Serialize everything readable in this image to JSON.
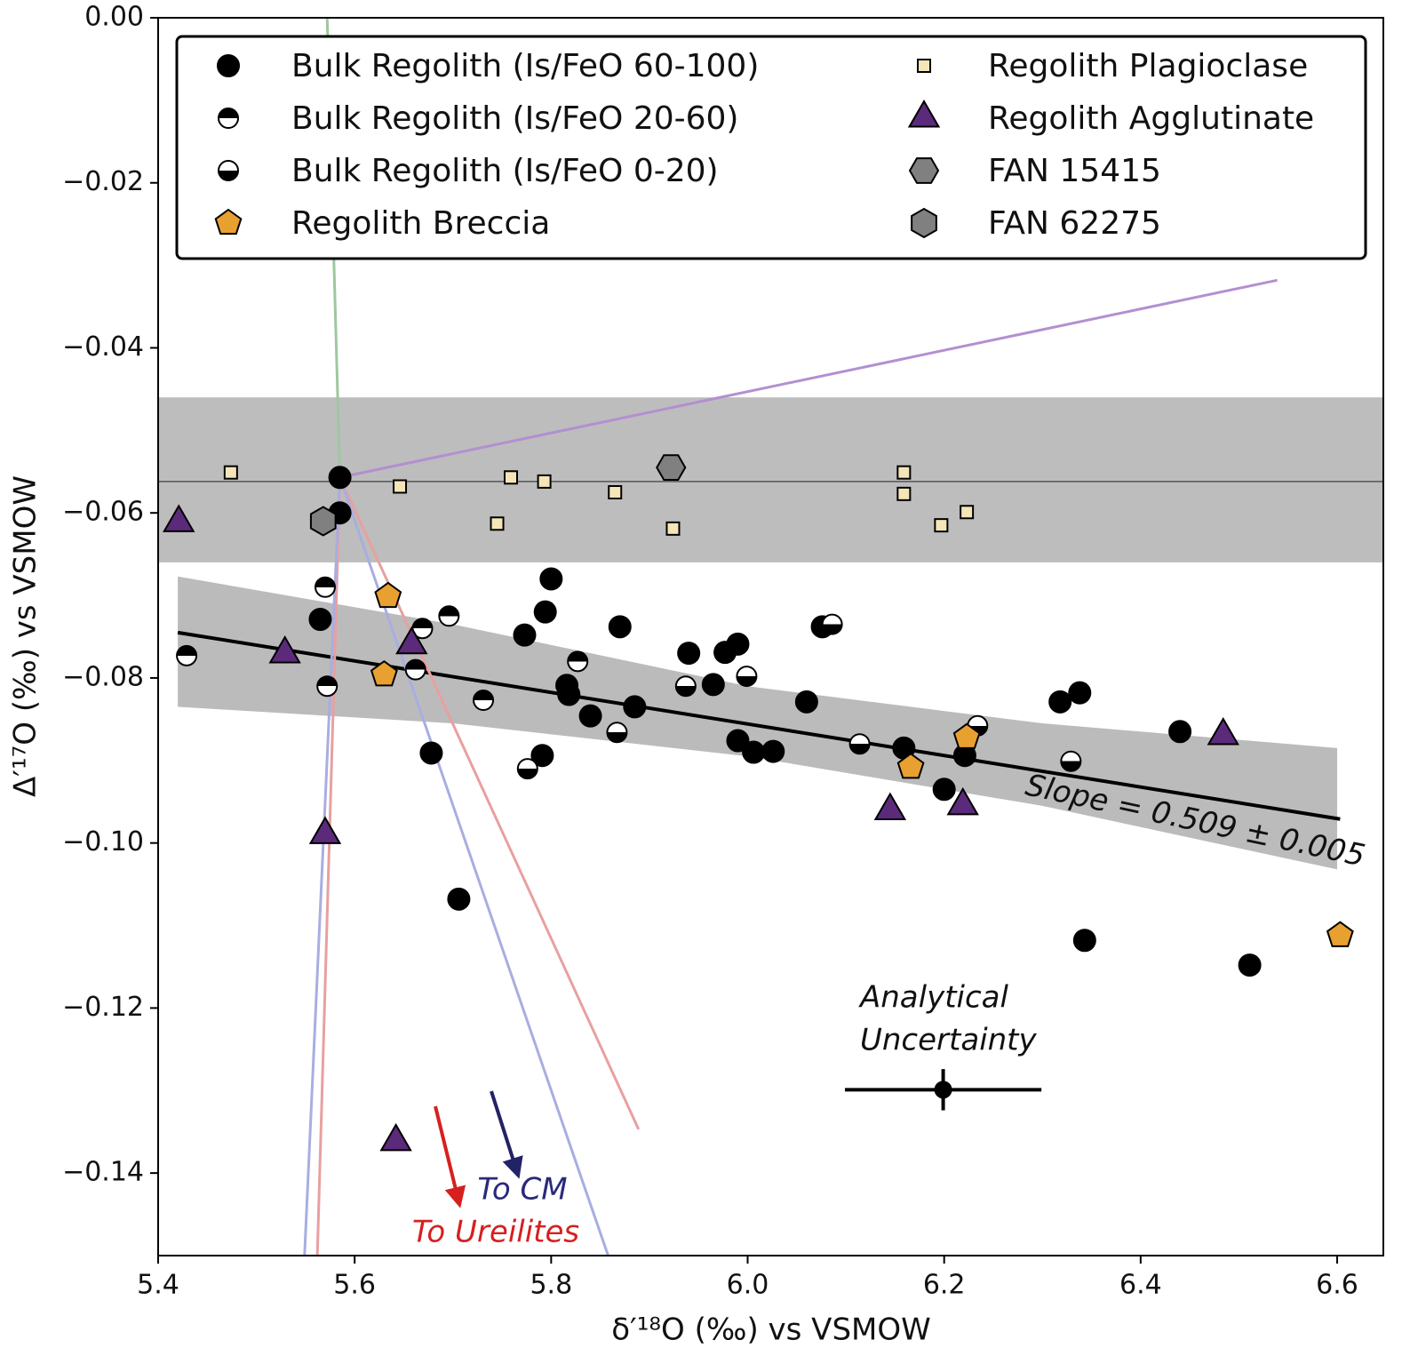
{
  "chart_data": {
    "type": "scatter",
    "xlabel": "δ′¹⁸O (‰) vs VSMOW",
    "ylabel": "Δ′¹⁷O (‰) vs VSMOW",
    "xlim": [
      5.4,
      6.647
    ],
    "ylim": [
      -0.15,
      0
    ],
    "xticks": [
      5.4,
      5.6,
      5.8,
      {
        "value": 6,
        "label": "6.0"
      },
      6.2,
      6.4,
      6.6
    ],
    "yticks": [
      {
        "value": 0,
        "label": "0.00"
      },
      {
        "value": -0.02,
        "label": "−0.02"
      },
      {
        "value": -0.04,
        "label": "−0.04"
      },
      {
        "value": -0.06,
        "label": "−0.06"
      },
      {
        "value": -0.08,
        "label": "−0.08"
      },
      {
        "value": -0.1,
        "label": "−0.10"
      },
      {
        "value": -0.12,
        "label": "−0.12"
      },
      {
        "value": -0.14,
        "label": "−0.14"
      }
    ],
    "hband": {
      "ymin": -0.066,
      "ymax": -0.046,
      "color": "#bdbdbd"
    },
    "hline": {
      "y": -0.0562,
      "color": "#555555"
    },
    "confidence_band": {
      "color": "#9e9e9e",
      "x": [
        5.42,
        5.7,
        6.0,
        6.3,
        6.6
      ],
      "upper": [
        -0.0677,
        -0.0735,
        -0.081,
        -0.0855,
        -0.0885
      ],
      "lower": [
        -0.0835,
        -0.0855,
        -0.0895,
        -0.0955,
        -0.1032
      ]
    },
    "lines": [
      {
        "color": "#000000",
        "x": [
          5.42,
          6.603
        ],
        "y": [
          -0.0745,
          -0.0971
        ]
      },
      {
        "color": "#b48fd0",
        "x": [
          5.585,
          6.539
        ],
        "y": [
          -0.0557,
          -0.0318
        ]
      },
      {
        "color": "#9fc79f",
        "x": [
          5.572,
          5.585
        ],
        "y": [
          0,
          -0.0557
        ]
      },
      {
        "color": "#e8a0a0",
        "x": [
          5.585,
          5.889
        ],
        "y": [
          -0.0557,
          -0.1347
        ]
      },
      {
        "color": "#e8a0a0",
        "x": [
          5.585,
          5.562
        ],
        "y": [
          -0.0557,
          -0.15
        ]
      },
      {
        "color": "#a8aee0",
        "x": [
          5.585,
          5.858
        ],
        "y": [
          -0.0557,
          -0.15
        ]
      },
      {
        "color": "#a8aee0",
        "x": [
          5.585,
          5.549
        ],
        "y": [
          -0.0557,
          -0.15
        ]
      }
    ],
    "series": [
      {
        "name": "Bulk Regolith (Is/FeO 60-100)",
        "color": "#000000",
        "marker": "circle",
        "x": [
          5.585,
          5.585,
          5.565,
          5.8,
          5.794,
          5.773,
          5.87,
          5.94,
          5.977,
          5.99,
          5.965,
          5.816,
          5.818,
          5.84,
          5.885,
          6.06,
          6.076,
          5.99,
          6.006,
          6.026,
          6.159,
          6.221,
          6.2,
          5.678,
          5.791,
          5.706,
          6.318,
          6.338,
          6.44,
          6.343,
          6.511
        ],
        "y": [
          -0.0557,
          -0.06,
          -0.0729,
          -0.068,
          -0.072,
          -0.0748,
          -0.0738,
          -0.077,
          -0.0769,
          -0.0759,
          -0.0808,
          -0.0809,
          -0.082,
          -0.0846,
          -0.0835,
          -0.0829,
          -0.0738,
          -0.0876,
          -0.089,
          -0.0889,
          -0.0885,
          -0.0894,
          -0.0935,
          -0.0891,
          -0.0894,
          -0.1068,
          -0.0829,
          -0.0818,
          -0.0865,
          -0.1118,
          -0.1148
        ]
      },
      {
        "name": "Bulk Regolith (Is/FeO 20-60)",
        "color": "#000000",
        "marker": "half-top",
        "x": [
          5.57,
          5.572,
          5.669,
          5.696,
          5.662,
          5.429,
          5.731,
          5.827
        ],
        "y": [
          -0.069,
          -0.081,
          -0.074,
          -0.0725,
          -0.079,
          -0.0773,
          -0.0827,
          -0.078
        ]
      },
      {
        "name": "Bulk Regolith (Is/FeO 0-20)",
        "color": "#000000",
        "marker": "half-bottom",
        "x": [
          5.776,
          5.867,
          5.937,
          5.999,
          6.086,
          6.114,
          6.234,
          6.329
        ],
        "y": [
          -0.091,
          -0.0866,
          -0.081,
          -0.0798,
          -0.0735,
          -0.088,
          -0.0858,
          -0.0901
        ]
      },
      {
        "name": "Regolith Breccia",
        "color": "#e8a030",
        "marker": "pentagon",
        "x": [
          5.634,
          5.63,
          6.166,
          6.223,
          6.603
        ],
        "y": [
          -0.0701,
          -0.0796,
          -0.0908,
          -0.0872,
          -0.1112
        ]
      },
      {
        "name": "Regolith Plagioclase",
        "color": "#f5e6b8",
        "marker": "square",
        "x": [
          5.474,
          5.646,
          5.759,
          5.793,
          5.745,
          5.865,
          5.924,
          6.159,
          6.159,
          6.197,
          6.223
        ],
        "y": [
          -0.0551,
          -0.0568,
          -0.0557,
          -0.0562,
          -0.0613,
          -0.0575,
          -0.0619,
          -0.0551,
          -0.0577,
          -0.0615,
          -0.0599
        ]
      },
      {
        "name": "Regolith Agglutinate",
        "color": "#5c2a7a",
        "marker": "triangle",
        "x": [
          5.421,
          5.529,
          5.658,
          5.57,
          5.642,
          6.145,
          6.219,
          6.484
        ],
        "y": [
          -0.0612,
          -0.0771,
          -0.076,
          -0.099,
          -0.1362,
          -0.0961,
          -0.0955,
          -0.087
        ]
      },
      {
        "name": "FAN 15415",
        "color": "#808080",
        "marker": "hexagon",
        "x": [
          5.922
        ],
        "y": [
          -0.0545
        ]
      },
      {
        "name": "FAN 62275",
        "color": "#808080",
        "marker": "hexagon-flat",
        "x": [
          5.568
        ],
        "y": [
          -0.061
        ]
      }
    ],
    "error_bar": {
      "x": 6.199,
      "y": -0.1299,
      "xerr": 0.1,
      "yerr": 0.0025
    },
    "annotations": {
      "slope": "Slope = 0.509 ± 0.005",
      "uncertainty_1": "Analytical",
      "uncertainty_2": "Uncertainty",
      "to_cm": "To CM",
      "to_ureilites": "To Ureilites"
    }
  }
}
